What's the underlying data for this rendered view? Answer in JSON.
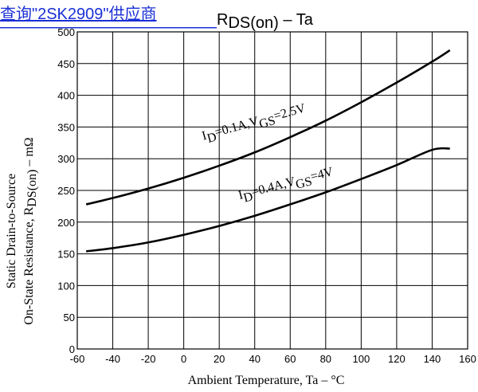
{
  "link": {
    "text": "查询\"2SK2909\"供应商",
    "color": "#1a2fd6"
  },
  "chart_data": {
    "type": "line",
    "title": "RDS(on) – Ta",
    "xlabel": "Ambient Temperature, Ta – °C",
    "ylabel_line1": "Static Drain-to-Source",
    "ylabel_line2": "On-State Resistance, RDS(on) – mΩ",
    "xlim": [
      -60,
      160
    ],
    "ylim": [
      0,
      500
    ],
    "xticks": [
      -60,
      -40,
      -20,
      0,
      20,
      40,
      60,
      80,
      100,
      120,
      140,
      160
    ],
    "yticks": [
      0,
      50,
      100,
      150,
      200,
      250,
      300,
      350,
      400,
      450,
      500
    ],
    "grid": true,
    "series": [
      {
        "name": "ID=0.1A,VGS=2.5V",
        "x": [
          -55,
          -40,
          -20,
          0,
          20,
          40,
          60,
          80,
          100,
          120,
          140,
          150
        ],
        "y": [
          228,
          238,
          253,
          270,
          289,
          310,
          334,
          360,
          389,
          420,
          453,
          471
        ]
      },
      {
        "name": "ID=0.4A,VGS=4V",
        "x": [
          -55,
          -40,
          -20,
          0,
          20,
          40,
          60,
          80,
          100,
          120,
          140,
          150
        ],
        "y": [
          154,
          159,
          168,
          180,
          194,
          210,
          228,
          247,
          268,
          290,
          314,
          316
        ]
      }
    ],
    "annotations": [
      {
        "prefix": "I",
        "sub1": "D",
        "mid": "=0.1A,V",
        "sub2": "GS",
        "suffix": "=2.5V",
        "x": 40,
        "y": 352,
        "angle": -15.5
      },
      {
        "prefix": "I",
        "sub1": "D",
        "mid": "=0.4A,V",
        "sub2": "GS",
        "suffix": "=4V",
        "x": 58,
        "y": 255,
        "angle": -14.5
      }
    ]
  }
}
